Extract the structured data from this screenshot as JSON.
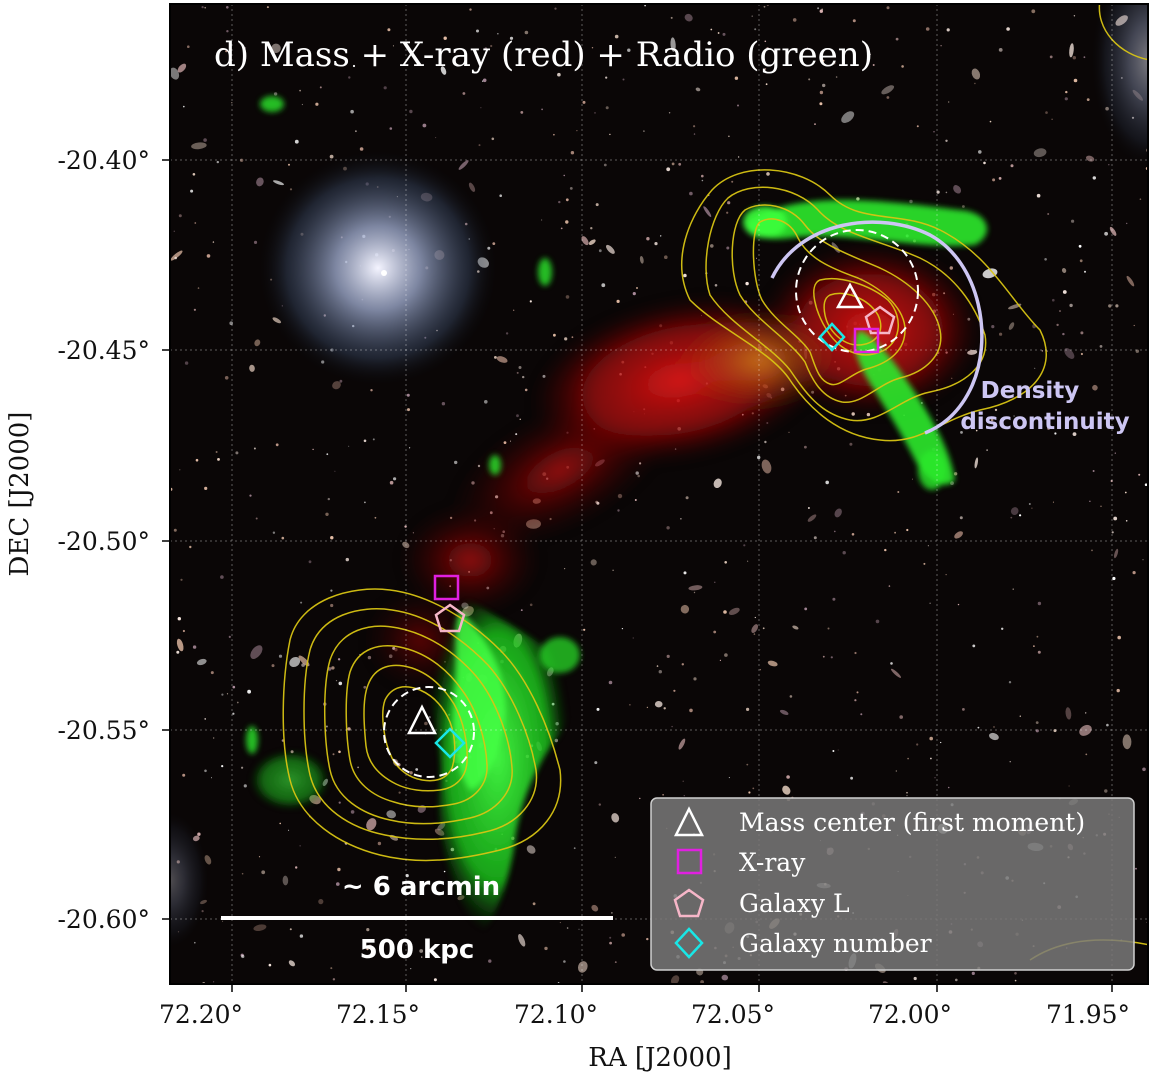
{
  "panel_title": "d) Mass + X-ray (red) + Radio (green)",
  "axes": {
    "xlabel": "RA [J2000]",
    "ylabel": "DEC [J2000]",
    "x_ticks": [
      "72.20°",
      "72.15°",
      "72.10°",
      "72.05°",
      "72.00°",
      "71.95°"
    ],
    "y_ticks": [
      "-20.40°",
      "-20.45°",
      "-20.50°",
      "-20.55°",
      "-20.60°"
    ]
  },
  "annotations": {
    "density_line1": "Density",
    "density_line2": "discontinuity",
    "scale_top": "~ 6 arcmin",
    "scale_bottom": "500 kpc"
  },
  "legend": [
    {
      "label": "Mass center (first moment)",
      "marker": "triangle",
      "color": "#ffffff"
    },
    {
      "label": "X-ray",
      "marker": "square",
      "color": "#e020e0"
    },
    {
      "label": "Galaxy L",
      "marker": "pentagon",
      "color": "#f6b6c8"
    },
    {
      "label": "Galaxy number",
      "marker": "diamond",
      "color": "#19e6e6"
    }
  ],
  "colors": {
    "xray": "#d01010",
    "radio": "#22ee22",
    "contours": "#d8c414",
    "arc": "#cdc6f3"
  }
}
